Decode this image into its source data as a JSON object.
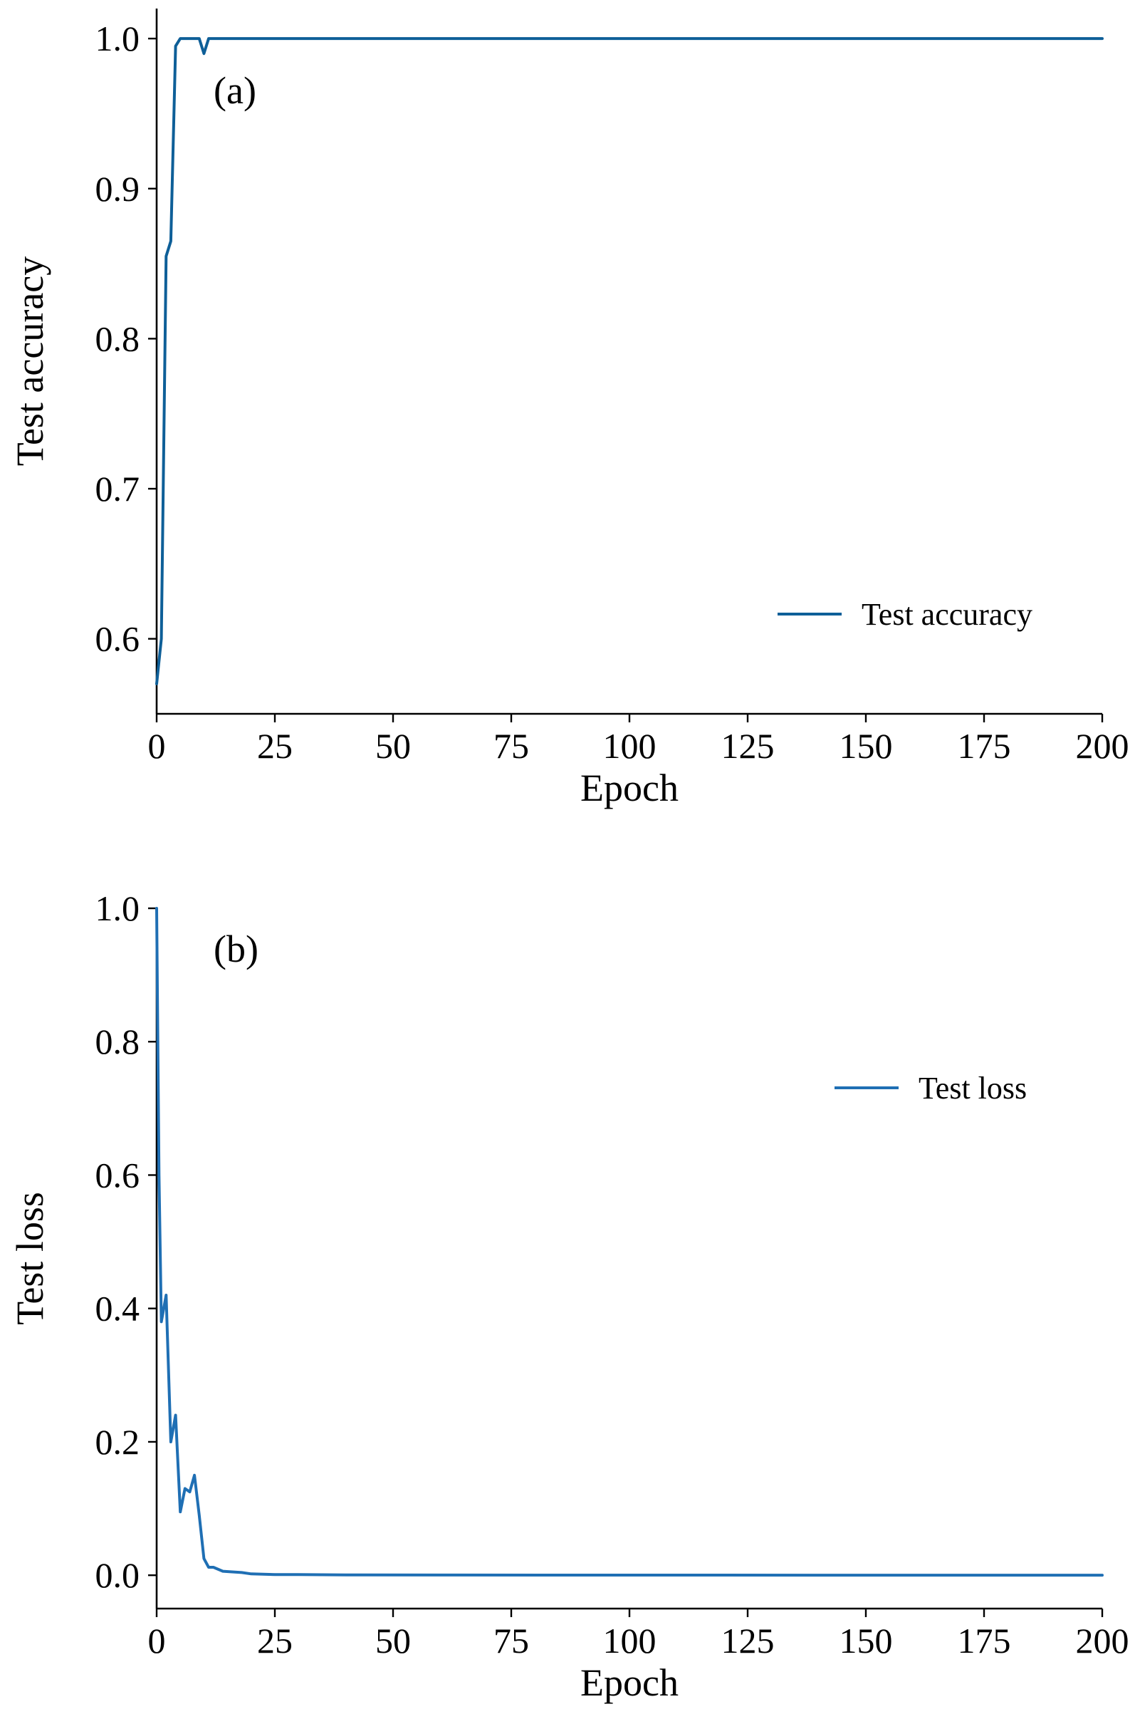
{
  "chart_data": [
    {
      "type": "line",
      "panel_label": "(a)",
      "xlabel": "Epoch",
      "ylabel": "Test accuracy",
      "xlim": [
        0,
        200
      ],
      "ylim": [
        0.55,
        1.02
      ],
      "xticks": [
        0,
        25,
        50,
        75,
        100,
        125,
        150,
        175,
        200
      ],
      "yticks": [
        0.6,
        0.7,
        0.8,
        0.9,
        1.0
      ],
      "ytick_labels": [
        "0.6",
        "0.7",
        "0.8",
        "0.9",
        "1.0"
      ],
      "grid": false,
      "legend_position": "lower-right",
      "series": [
        {
          "name": "Test accuracy",
          "color": "#0e5f98",
          "x": [
            0,
            1,
            2,
            3,
            4,
            5,
            6,
            7,
            8,
            9,
            10,
            11,
            12,
            15,
            20,
            30,
            50,
            100,
            150,
            200
          ],
          "y": [
            0.57,
            0.6,
            0.855,
            0.865,
            0.995,
            1.0,
            1.0,
            1.0,
            1.0,
            1.0,
            0.99,
            1.0,
            1.0,
            1.0,
            1.0,
            1.0,
            1.0,
            1.0,
            1.0,
            1.0
          ]
        }
      ]
    },
    {
      "type": "line",
      "panel_label": "(b)",
      "xlabel": "Epoch",
      "ylabel": "Test loss",
      "xlim": [
        0,
        200
      ],
      "ylim": [
        -0.05,
        1.0
      ],
      "xticks": [
        0,
        25,
        50,
        75,
        100,
        125,
        150,
        175,
        200
      ],
      "yticks": [
        0.0,
        0.2,
        0.4,
        0.6,
        0.8,
        1.0
      ],
      "ytick_labels": [
        "0.0",
        "0.2",
        "0.4",
        "0.6",
        "0.8",
        "1.0"
      ],
      "grid": false,
      "legend_position": "upper-right",
      "series": [
        {
          "name": "Test loss",
          "color": "#1f6fb4",
          "x": [
            0,
            0.5,
            1,
            1.5,
            2,
            3,
            4,
            5,
            6,
            7,
            8,
            9,
            10,
            11,
            12,
            14,
            16,
            18,
            20,
            25,
            30,
            40,
            60,
            100,
            150,
            200
          ],
          "y": [
            1.0,
            0.6,
            0.38,
            0.4,
            0.42,
            0.2,
            0.24,
            0.095,
            0.13,
            0.125,
            0.15,
            0.09,
            0.025,
            0.012,
            0.012,
            0.006,
            0.005,
            0.004,
            0.002,
            0.001,
            0.001,
            0.0005,
            0.0003,
            0.0002,
            0.0001,
            0.0001
          ]
        }
      ]
    }
  ]
}
